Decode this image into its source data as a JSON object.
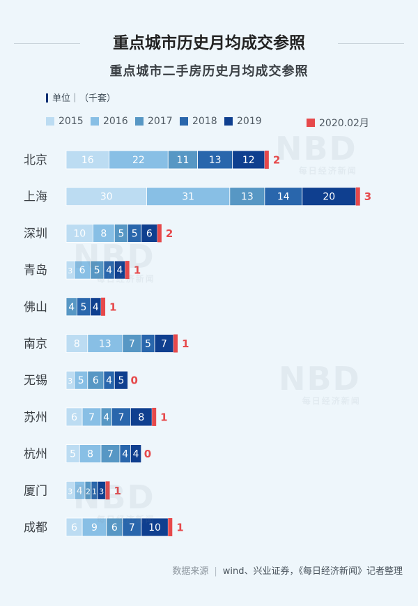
{
  "title": "重点城市历史月均成交参照",
  "subtitle": "重点城市二手房历史月均成交参照",
  "unit_label": "单位｜（千套）",
  "footer": {
    "source_label": "数据来源",
    "source_text": "wind、兴业证券，《每日经济新闻》记者整理"
  },
  "watermark": {
    "logo": "NBD",
    "name": "每日经济新闻"
  },
  "colors": {
    "2015": "#bcdcf2",
    "2016": "#88bfe5",
    "2017": "#5797c4",
    "2018": "#2966ac",
    "2019": "#0f3f8f",
    "2020.02月": "#e6494b",
    "value_text": "#ffffff",
    "total_text": "#e6494b",
    "category_text": "#3a3f44"
  },
  "chart_data": {
    "type": "bar",
    "orientation": "horizontal",
    "stacked": true,
    "title": "重点城市二手房历史月均成交参照",
    "unit": "千套",
    "legend_position": "top",
    "grid": false,
    "categories": [
      "北京",
      "上海",
      "深圳",
      "青岛",
      "佛山",
      "南京",
      "无锡",
      "苏州",
      "杭州",
      "厦门",
      "成都"
    ],
    "series": [
      {
        "name": "2015",
        "values": [
          16,
          30,
          10,
          3,
          null,
          8,
          3,
          6,
          5,
          3,
          6
        ]
      },
      {
        "name": "2016",
        "values": [
          22,
          31,
          8,
          6,
          null,
          13,
          5,
          7,
          8,
          4,
          9
        ]
      },
      {
        "name": "2017",
        "values": [
          11,
          13,
          5,
          5,
          4,
          7,
          6,
          4,
          7,
          2,
          6
        ]
      },
      {
        "name": "2018",
        "values": [
          13,
          14,
          5,
          4,
          5,
          5,
          4,
          7,
          4,
          1,
          7
        ]
      },
      {
        "name": "2019",
        "values": [
          12,
          20,
          6,
          4,
          4,
          7,
          5,
          8,
          4,
          3,
          10
        ]
      },
      {
        "name": "2020.02月",
        "values": [
          2,
          3,
          2,
          1,
          1,
          1,
          0,
          1,
          0,
          1,
          1
        ]
      }
    ]
  }
}
